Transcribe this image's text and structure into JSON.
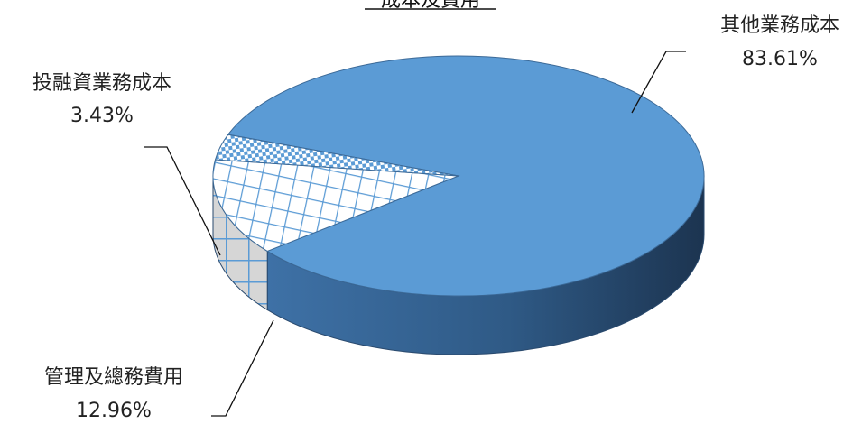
{
  "chart_data": {
    "type": "pie",
    "title": "成本及費用",
    "slices": [
      {
        "label": "其他業務成本",
        "value": 83.61,
        "display": "83.61%",
        "color": "#5b9bd5"
      },
      {
        "label": "投融資業務成本",
        "value": 3.43,
        "display": "3.43%",
        "color": "#5b9bd5"
      },
      {
        "label": "管理及總務費用",
        "value": 12.96,
        "display": "12.96%",
        "color": "#5b9bd5"
      }
    ]
  }
}
